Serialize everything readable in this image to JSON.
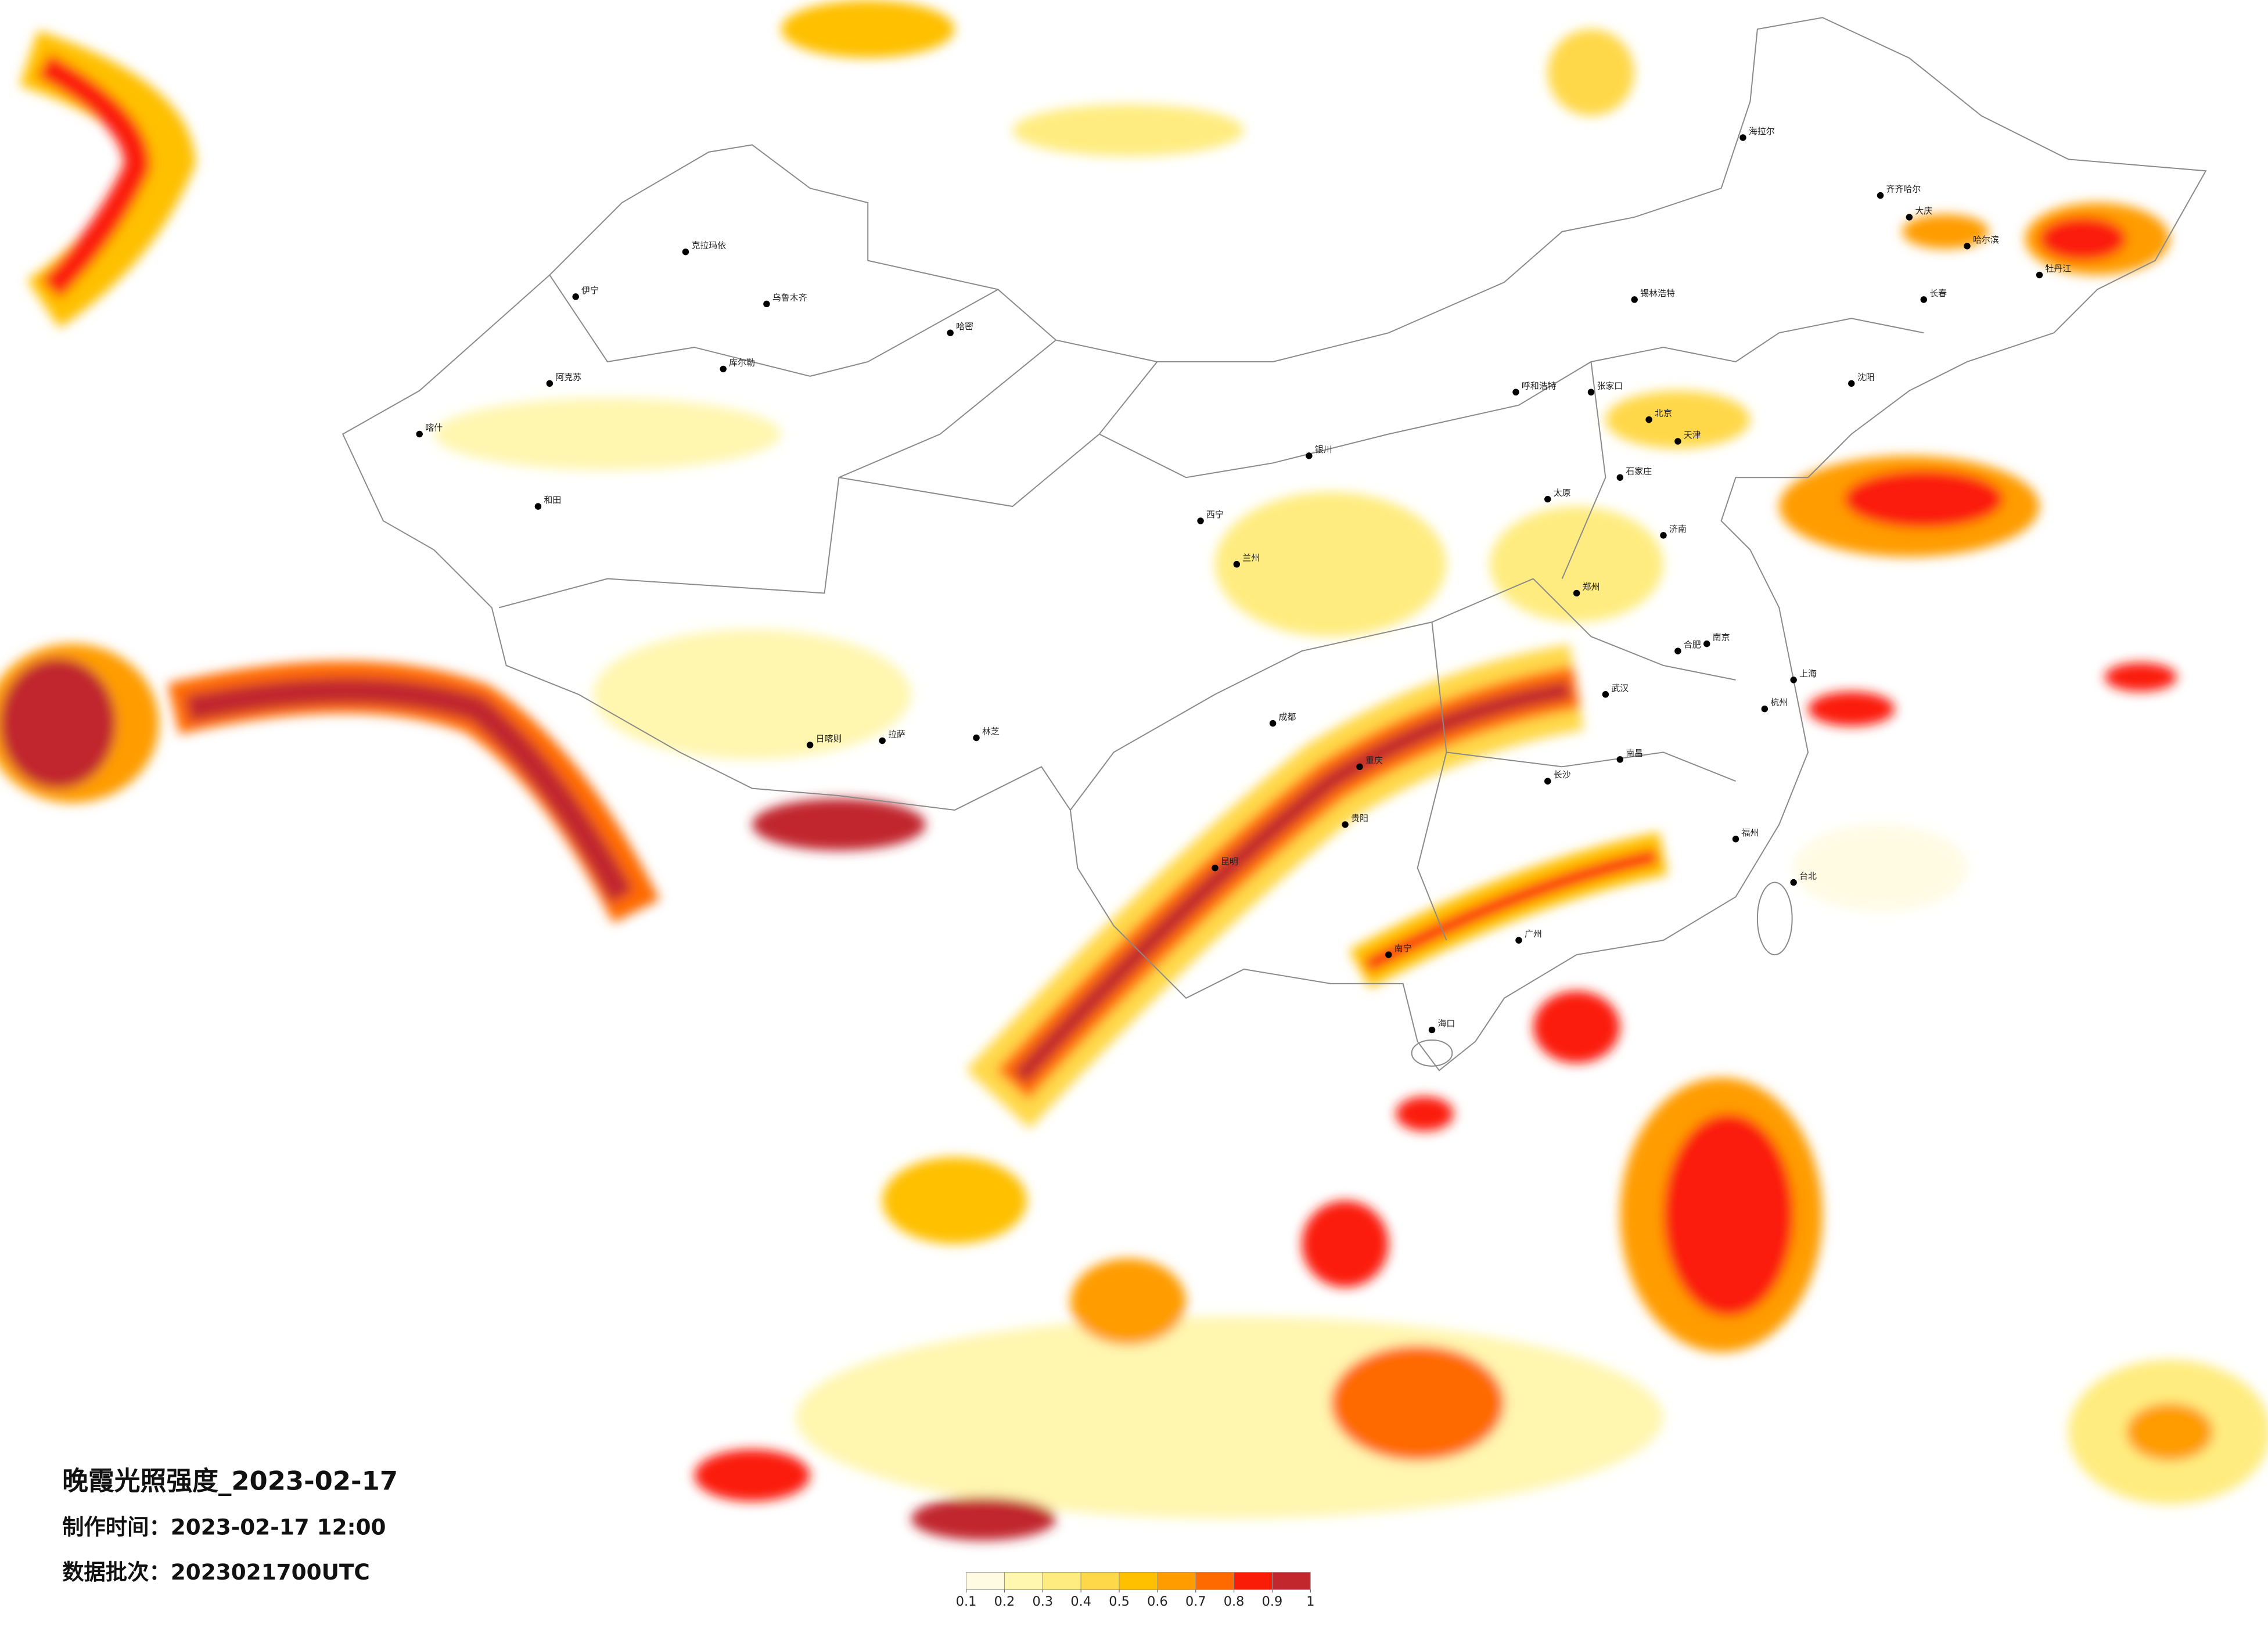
{
  "title": "晚霞光照强度_2023-02-17",
  "made_time": "制作时间：2023-02-17 12:00",
  "data_batch": "数据批次：2023021700UTC",
  "legend": {
    "ticks": [
      0.1,
      0.2,
      0.3,
      0.4,
      0.5,
      0.6,
      0.7,
      0.8,
      0.9,
      1
    ],
    "colors": [
      "#fffbe3",
      "#fff6b0",
      "#ffec80",
      "#ffd84a",
      "#ffc000",
      "#ff9c00",
      "#ff6a00",
      "#fb1c08",
      "#c1272d"
    ]
  },
  "cities": [
    "乌鲁木齐",
    "克拉玛依",
    "伊宁",
    "阿克苏",
    "喀什",
    "和田",
    "哈密",
    "库尔勒",
    "拉萨",
    "日喀则",
    "林芝",
    "西宁",
    "兰州",
    "银川",
    "成都",
    "重庆",
    "贵阳",
    "昆明",
    "南宁",
    "广州",
    "长沙",
    "武汉",
    "郑州",
    "太原",
    "石家庄",
    "北京",
    "天津",
    "呼和浩特",
    "沈阳",
    "长春",
    "哈尔滨",
    "济南",
    "南京",
    "上海",
    "杭州",
    "福州",
    "南昌",
    "合肥",
    "海口",
    "台北",
    "齐齐哈尔",
    "牡丹江",
    "锡林浩特",
    "张家口",
    "大庆",
    "海拉尔"
  ]
}
